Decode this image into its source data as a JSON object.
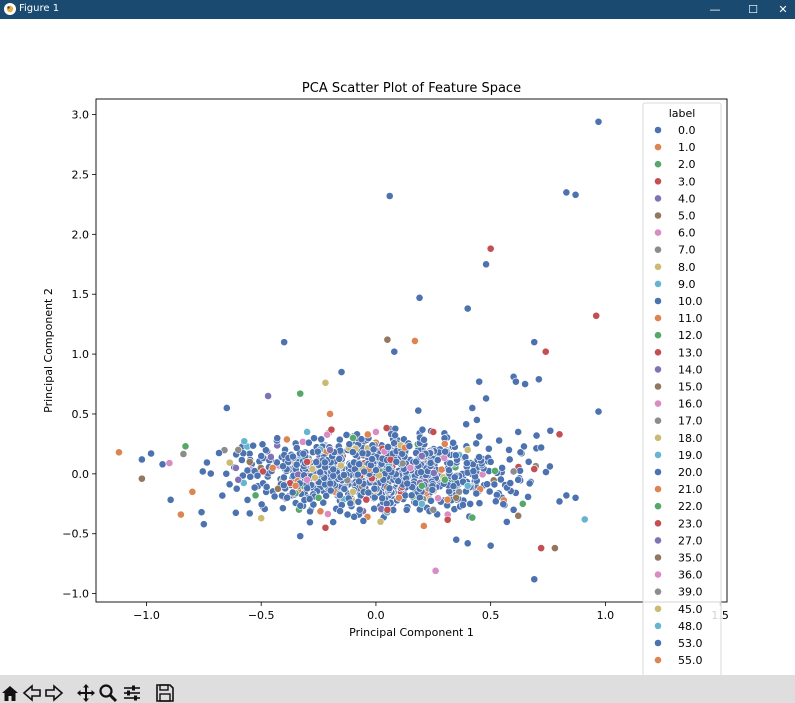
{
  "window": {
    "title": "Figure 1",
    "minimize_glyph": "—",
    "maximize_glyph": "☐",
    "close_glyph": "✕"
  },
  "toolbar": {
    "tools": [
      "home-icon",
      "back-icon",
      "forward-icon",
      "pan-icon",
      "zoom-icon",
      "configure-subplots-icon",
      "save-icon"
    ]
  },
  "chart_data": {
    "type": "scatter",
    "title": "PCA Scatter Plot of Feature Space",
    "xlabel": "Principal Component 1",
    "ylabel": "Principal Component 2",
    "xlim": [
      -1.22,
      1.53
    ],
    "ylim": [
      -1.07,
      3.13
    ],
    "xticks": [
      -1.0,
      -0.5,
      0.0,
      0.5,
      1.0,
      1.5
    ],
    "xtick_labels": [
      "−1.0",
      "−0.5",
      "0.0",
      "0.5",
      "1.0",
      "1.5"
    ],
    "yticks": [
      -1.0,
      -0.5,
      0.0,
      0.5,
      1.0,
      1.5,
      2.0,
      2.5,
      3.0
    ],
    "ytick_labels": [
      "−1.0",
      "−0.5",
      "0.0",
      "0.5",
      "1.0",
      "1.5",
      "2.0",
      "2.5",
      "3.0"
    ],
    "grid": false,
    "legend": {
      "title": "label",
      "placement": "right",
      "entries": [
        "0.0",
        "1.0",
        "2.0",
        "3.0",
        "4.0",
        "5.0",
        "6.0",
        "7.0",
        "8.0",
        "9.0",
        "10.0",
        "11.0",
        "12.0",
        "13.0",
        "14.0",
        "15.0",
        "16.0",
        "17.0",
        "18.0",
        "19.0",
        "20.0",
        "21.0",
        "22.0",
        "23.0",
        "27.0",
        "35.0",
        "36.0",
        "39.0",
        "45.0",
        "48.0",
        "53.0",
        "55.0"
      ]
    },
    "palette": [
      "#4c72b0",
      "#dd8452",
      "#55a868",
      "#c44e52",
      "#8172b3",
      "#937860",
      "#da8bc3",
      "#8c8c8c",
      "#ccb974",
      "#64b5cd"
    ],
    "series": [
      {
        "label_index": 0,
        "points": [
          [
            0.97,
            2.94
          ],
          [
            0.06,
            2.32
          ],
          [
            0.83,
            2.35
          ],
          [
            0.87,
            2.33
          ],
          [
            0.48,
            1.75
          ],
          [
            0.19,
            1.47
          ],
          [
            0.4,
            1.38
          ],
          [
            -0.4,
            1.1
          ],
          [
            0.69,
            1.1
          ],
          [
            0.08,
            1.02
          ],
          [
            0.6,
            0.81
          ],
          [
            0.61,
            0.77
          ],
          [
            0.65,
            0.75
          ],
          [
            0.71,
            0.79
          ],
          [
            -0.15,
            0.85
          ],
          [
            0.45,
            0.77
          ],
          [
            0.97,
            0.52
          ],
          [
            0.62,
            0.35
          ],
          [
            0.7,
            0.32
          ],
          [
            0.76,
            0.36
          ],
          [
            -0.65,
            0.55
          ],
          [
            0.83,
            -0.18
          ],
          [
            0.87,
            -0.2
          ],
          [
            0.8,
            -0.23
          ],
          [
            0.69,
            -0.88
          ],
          [
            -0.33,
            -0.52
          ],
          [
            0.5,
            -0.6
          ],
          [
            0.4,
            -0.58
          ],
          [
            0.35,
            -0.55
          ],
          [
            -0.76,
            -0.32
          ],
          [
            -0.75,
            -0.42
          ],
          [
            -0.93,
            0.08
          ],
          [
            -1.02,
            0.12
          ],
          [
            -0.98,
            0.17
          ],
          [
            -0.55,
            -0.33
          ],
          [
            0.6,
            -0.3
          ],
          [
            0.45,
            0.14
          ],
          [
            0.5,
            0.1
          ],
          [
            0.55,
            0.05
          ],
          [
            0.58,
            0.2
          ],
          [
            0.63,
            0.18
          ],
          [
            0.72,
            0.22
          ],
          [
            0.67,
            -0.08
          ],
          [
            0.62,
            -0.05
          ],
          [
            0.42,
            0.55
          ],
          [
            0.44,
            0.45
          ],
          [
            0.48,
            0.63
          ]
        ]
      },
      {
        "label_index": 1,
        "points": [
          [
            0.17,
            1.11
          ],
          [
            -1.12,
            0.18
          ],
          [
            -0.85,
            -0.34
          ],
          [
            -0.8,
            -0.15
          ],
          [
            0.3,
            0.25
          ],
          [
            -0.2,
            0.5
          ],
          [
            0.1,
            -0.2
          ],
          [
            -0.35,
            -0.1
          ],
          [
            -0.45,
            0.05
          ]
        ]
      },
      {
        "label_index": 2,
        "points": [
          [
            -0.83,
            0.23
          ],
          [
            0.64,
            -0.25
          ],
          [
            -0.33,
            0.67
          ],
          [
            0.2,
            -0.1
          ],
          [
            -0.1,
            0.3
          ],
          [
            0.3,
            -0.05
          ],
          [
            -0.25,
            -0.2
          ]
        ]
      },
      {
        "label_index": 3,
        "points": [
          [
            0.5,
            1.88
          ],
          [
            0.96,
            1.32
          ],
          [
            0.74,
            1.02
          ],
          [
            0.72,
            -0.62
          ],
          [
            -0.22,
            -0.45
          ],
          [
            0.69,
            0.04
          ],
          [
            0.8,
            0.33
          ],
          [
            0.25,
            0.35
          ],
          [
            -0.3,
            0.1
          ],
          [
            0.05,
            -0.3
          ]
        ]
      },
      {
        "label_index": 4,
        "points": [
          [
            -0.47,
            0.65
          ],
          [
            -0.2,
            0.2
          ],
          [
            0.2,
            0.15
          ],
          [
            -0.6,
            -0.05
          ]
        ]
      },
      {
        "label_index": 5,
        "points": [
          [
            0.05,
            1.12
          ],
          [
            -1.02,
            -0.04
          ],
          [
            0.78,
            -0.62
          ],
          [
            0.62,
            -0.35
          ],
          [
            -0.55,
            0.1
          ],
          [
            0.35,
            -0.2
          ]
        ]
      },
      {
        "label_index": 6,
        "points": [
          [
            0.26,
            -0.81
          ],
          [
            -0.9,
            0.09
          ],
          [
            -0.3,
            -0.05
          ],
          [
            0.15,
            0.05
          ],
          [
            0.0,
            0.35
          ]
        ]
      },
      {
        "label_index": 7,
        "points": [
          [
            0.6,
            0.02
          ],
          [
            -0.6,
            0.2
          ],
          [
            0.25,
            -0.3
          ]
        ]
      },
      {
        "label_index": 8,
        "points": [
          [
            -0.22,
            0.76
          ],
          [
            -0.5,
            -0.37
          ],
          [
            0.02,
            -0.4
          ],
          [
            0.4,
            0.2
          ],
          [
            -0.1,
            -0.15
          ]
        ]
      },
      {
        "label_index": 9,
        "points": [
          [
            0.91,
            -0.38
          ],
          [
            0.2,
            -0.25
          ],
          [
            -0.3,
            0.35
          ],
          [
            0.4,
            -0.1
          ]
        ]
      }
    ],
    "dense_cluster": {
      "center": [
        0.0,
        0.0
      ],
      "spread": [
        0.28,
        0.15
      ],
      "count": 1100
    }
  }
}
